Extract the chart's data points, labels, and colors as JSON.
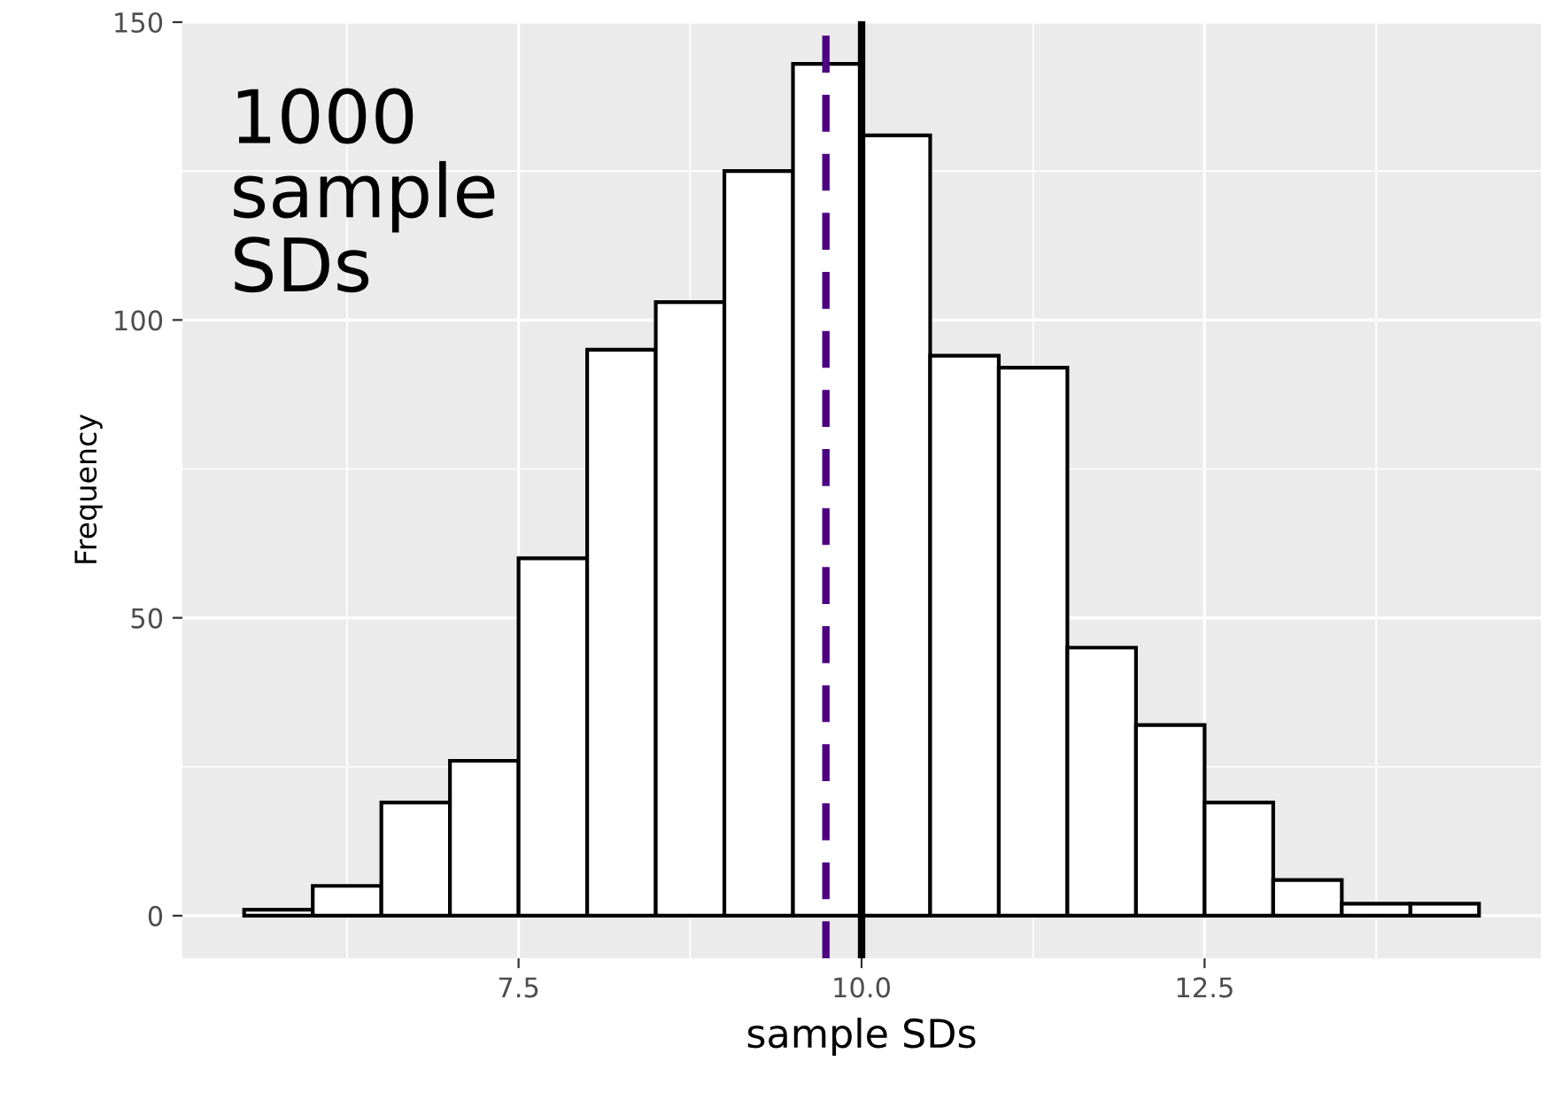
{
  "chart_data": {
    "type": "histogram",
    "xlabel": "sample SDs",
    "ylabel": "Frequency",
    "bins": [
      5.5,
      6.0,
      6.5,
      7.0,
      7.5,
      8.0,
      8.5,
      9.0,
      9.5,
      10.0,
      10.5,
      11.0,
      11.5,
      12.0,
      12.5,
      13.0,
      13.5,
      14.0,
      14.5
    ],
    "values": [
      1,
      5,
      19,
      26,
      60,
      95,
      103,
      125,
      143,
      131,
      94,
      92,
      45,
      32,
      19,
      6,
      2,
      2
    ],
    "color": "#ffffff",
    "xlim": [
      5.05,
      14.95
    ],
    "xticks": [
      7.5,
      {
        "value": 10,
        "label": "10.0"
      },
      12.5
    ],
    "ylim": [
      -7.15,
      150.15
    ],
    "yticks": [
      0,
      50,
      100,
      150
    ],
    "grid": true,
    "ref_lines": [
      {
        "axis": "x",
        "value": 9.74,
        "color": "#4b0082",
        "line_style": "dashed"
      },
      {
        "axis": "x",
        "value": 10.0,
        "color": "#000000",
        "line_style": "solid"
      }
    ],
    "annotations": [
      "1000\nsample\nSDs"
    ]
  }
}
